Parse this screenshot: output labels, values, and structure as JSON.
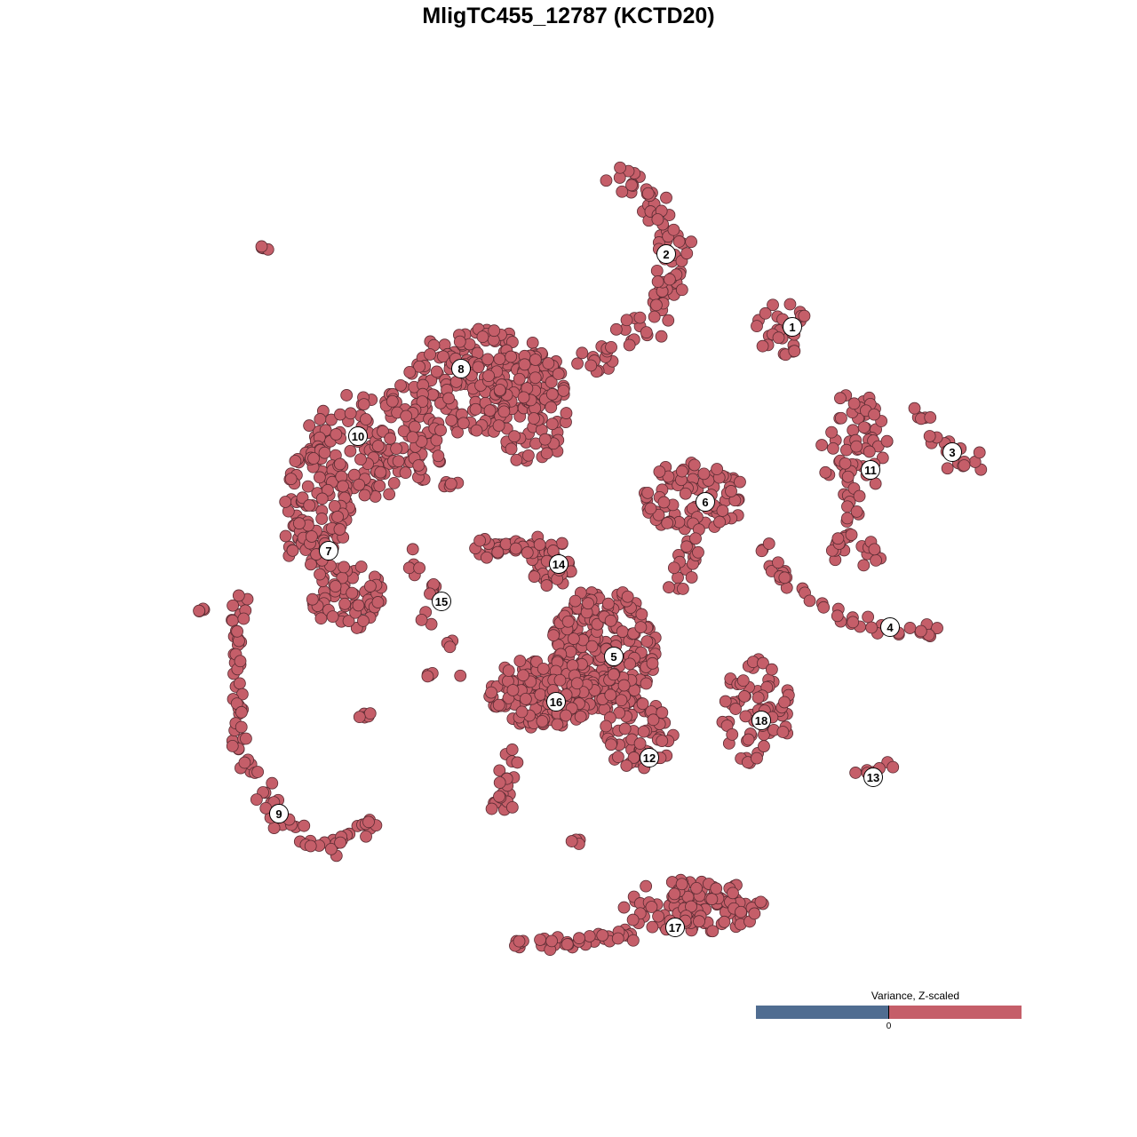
{
  "chart_data": {
    "type": "scatter",
    "title": "MligTC455_12787 (KCTD20)",
    "xlabel": "",
    "ylabel": "",
    "xlim": [
      -64,
      64
    ],
    "ylim": [
      -64,
      64
    ],
    "grid": false,
    "axes_visible": false,
    "point_color": "#c55e69",
    "point_edge_color": "#5b2c33",
    "legend": {
      "title": "Variance, Z-scaled",
      "placement": "bottom-right",
      "tick_label": "0",
      "negative_color": "#506d91",
      "positive_color": "#c55e69"
    },
    "cluster_labels": [
      {
        "label": "1",
        "x": 25.2,
        "y": 27.2
      },
      {
        "label": "2",
        "x": 11.0,
        "y": 35.4
      },
      {
        "label": "3",
        "x": 43.2,
        "y": 13.1
      },
      {
        "label": "4",
        "x": 36.2,
        "y": -6.6
      },
      {
        "label": "5",
        "x": 5.1,
        "y": -9.9
      },
      {
        "label": "6",
        "x": 15.4,
        "y": 7.5
      },
      {
        "label": "7",
        "x": -27.0,
        "y": 2.0
      },
      {
        "label": "8",
        "x": -12.1,
        "y": 22.5
      },
      {
        "label": "9",
        "x": -32.6,
        "y": -27.6
      },
      {
        "label": "10",
        "x": -23.7,
        "y": 14.9
      },
      {
        "label": "11",
        "x": 34.0,
        "y": 11.1
      },
      {
        "label": "12",
        "x": 9.1,
        "y": -21.3
      },
      {
        "label": "13",
        "x": 34.3,
        "y": -23.5
      },
      {
        "label": "14",
        "x": -1.1,
        "y": 0.5
      },
      {
        "label": "15",
        "x": -14.3,
        "y": -3.7
      },
      {
        "label": "16",
        "x": -1.4,
        "y": -15.0
      },
      {
        "label": "17",
        "x": 12.0,
        "y": -40.4
      },
      {
        "label": "18",
        "x": 21.7,
        "y": -17.1
      }
    ],
    "point_clouds": [
      {
        "kind": "blob",
        "center": [
          -10,
          21
        ],
        "spread": [
          9,
          6
        ],
        "n": 220
      },
      {
        "kind": "blob",
        "center": [
          -22,
          14
        ],
        "spread": [
          8,
          6
        ],
        "n": 150
      },
      {
        "kind": "blob",
        "center": [
          -28,
          8
        ],
        "spread": [
          4,
          6
        ],
        "n": 80
      },
      {
        "kind": "blob",
        "center": [
          -4,
          18
        ],
        "spread": [
          4,
          7
        ],
        "n": 80
      },
      {
        "kind": "blob",
        "center": [
          -25,
          -3
        ],
        "spread": [
          4,
          4
        ],
        "n": 70
      },
      {
        "kind": "blob",
        "center": [
          -29,
          3
        ],
        "spread": [
          3,
          3
        ],
        "n": 30
      },
      {
        "kind": "path",
        "points": [
          [
            -37,
            -3
          ],
          [
            -37.5,
            -12
          ],
          [
            -37,
            -20
          ],
          [
            -33,
            -28
          ],
          [
            -27,
            -31
          ],
          [
            -22,
            -29
          ]
        ],
        "spread": 1,
        "n": 90
      },
      {
        "kind": "path",
        "points": [
          [
            5,
            44
          ],
          [
            9,
            42
          ],
          [
            12,
            36
          ],
          [
            10,
            29
          ],
          [
            6,
            25
          ],
          [
            2,
            22.5
          ]
        ],
        "spread": 1.5,
        "n": 100
      },
      {
        "kind": "blob",
        "center": [
          24,
          27
        ],
        "spread": [
          3,
          3
        ],
        "n": 30
      },
      {
        "kind": "blob",
        "center": [
          32,
          14
        ],
        "spread": [
          4,
          6
        ],
        "n": 60
      },
      {
        "kind": "path",
        "points": [
          [
            33,
            8
          ],
          [
            30,
            2
          ],
          [
            35,
            1.5
          ]
        ],
        "spread": 1,
        "n": 30
      },
      {
        "kind": "path",
        "points": [
          [
            38.5,
            19
          ],
          [
            41,
            15
          ],
          [
            43.5,
            12
          ],
          [
            46,
            12
          ]
        ],
        "spread": 0.8,
        "n": 22
      },
      {
        "kind": "blob",
        "center": [
          14,
          8
        ],
        "spread": [
          6,
          4
        ],
        "n": 90
      },
      {
        "kind": "path",
        "points": [
          [
            14,
            4
          ],
          [
            12,
            -3
          ]
        ],
        "spread": 1,
        "n": 20
      },
      {
        "kind": "path",
        "points": [
          [
            22,
            3
          ],
          [
            25,
            -2
          ],
          [
            30,
            -5
          ],
          [
            36,
            -7
          ],
          [
            42,
            -7
          ]
        ],
        "spread": 0.8,
        "n": 40
      },
      {
        "kind": "path",
        "points": [
          [
            -10,
            2.5
          ],
          [
            -4,
            2.5
          ],
          [
            -3,
            -1
          ]
        ],
        "spread": 0.8,
        "n": 40
      },
      {
        "kind": "blob",
        "center": [
          -2,
          1
        ],
        "spread": [
          3,
          3
        ],
        "n": 30
      },
      {
        "kind": "path",
        "points": [
          [
            -18,
            1.5
          ],
          [
            -15,
            -2
          ],
          [
            -16,
            -6
          ]
        ],
        "spread": 0.6,
        "n": 15
      },
      {
        "kind": "blob",
        "center": [
          4,
          -9
        ],
        "spread": [
          6,
          7
        ],
        "n": 250
      },
      {
        "kind": "blob",
        "center": [
          -3,
          -14
        ],
        "spread": [
          6,
          4
        ],
        "n": 150
      },
      {
        "kind": "path",
        "points": [
          [
            -6,
            -20
          ],
          [
            -8,
            -27
          ]
        ],
        "spread": 1,
        "n": 20
      },
      {
        "kind": "blob",
        "center": [
          8,
          -19
        ],
        "spread": [
          4,
          4
        ],
        "n": 60
      },
      {
        "kind": "blob",
        "center": [
          21,
          -16
        ],
        "spread": [
          4,
          6
        ],
        "n": 70
      },
      {
        "kind": "path",
        "points": [
          [
            32,
            -23.5
          ],
          [
            37,
            -22
          ]
        ],
        "spread": 0.5,
        "n": 8
      },
      {
        "kind": "blob",
        "center": [
          14,
          -38
        ],
        "spread": [
          8,
          3
        ],
        "n": 120
      },
      {
        "kind": "path",
        "points": [
          [
            -6,
            -42
          ],
          [
            2,
            -42
          ],
          [
            8,
            -41
          ]
        ],
        "spread": 0.6,
        "n": 40
      },
      {
        "kind": "path",
        "points": [
          [
            -35,
            37
          ],
          [
            -34,
            36
          ]
        ],
        "spread": 0.3,
        "n": 4
      },
      {
        "kind": "path",
        "points": [
          [
            -42,
            -5
          ],
          [
            -41,
            -4.5
          ]
        ],
        "spread": 0.3,
        "n": 4
      },
      {
        "kind": "path",
        "points": [
          [
            -23.5,
            -16.5
          ],
          [
            -22,
            -16.5
          ]
        ],
        "spread": 0.4,
        "n": 5
      },
      {
        "kind": "path",
        "points": [
          [
            -16,
            -12
          ],
          [
            -12,
            -12
          ]
        ],
        "spread": 0.4,
        "n": 6
      },
      {
        "kind": "path",
        "points": [
          [
            0,
            -31
          ],
          [
            1.5,
            -30.5
          ]
        ],
        "spread": 0.4,
        "n": 4
      },
      {
        "kind": "path",
        "points": [
          [
            -14,
            -9
          ],
          [
            -13,
            -8
          ]
        ],
        "spread": 0.4,
        "n": 4
      },
      {
        "kind": "path",
        "points": [
          [
            -14,
            9.5
          ],
          [
            -11,
            10
          ]
        ],
        "spread": 0.4,
        "n": 5
      }
    ]
  }
}
